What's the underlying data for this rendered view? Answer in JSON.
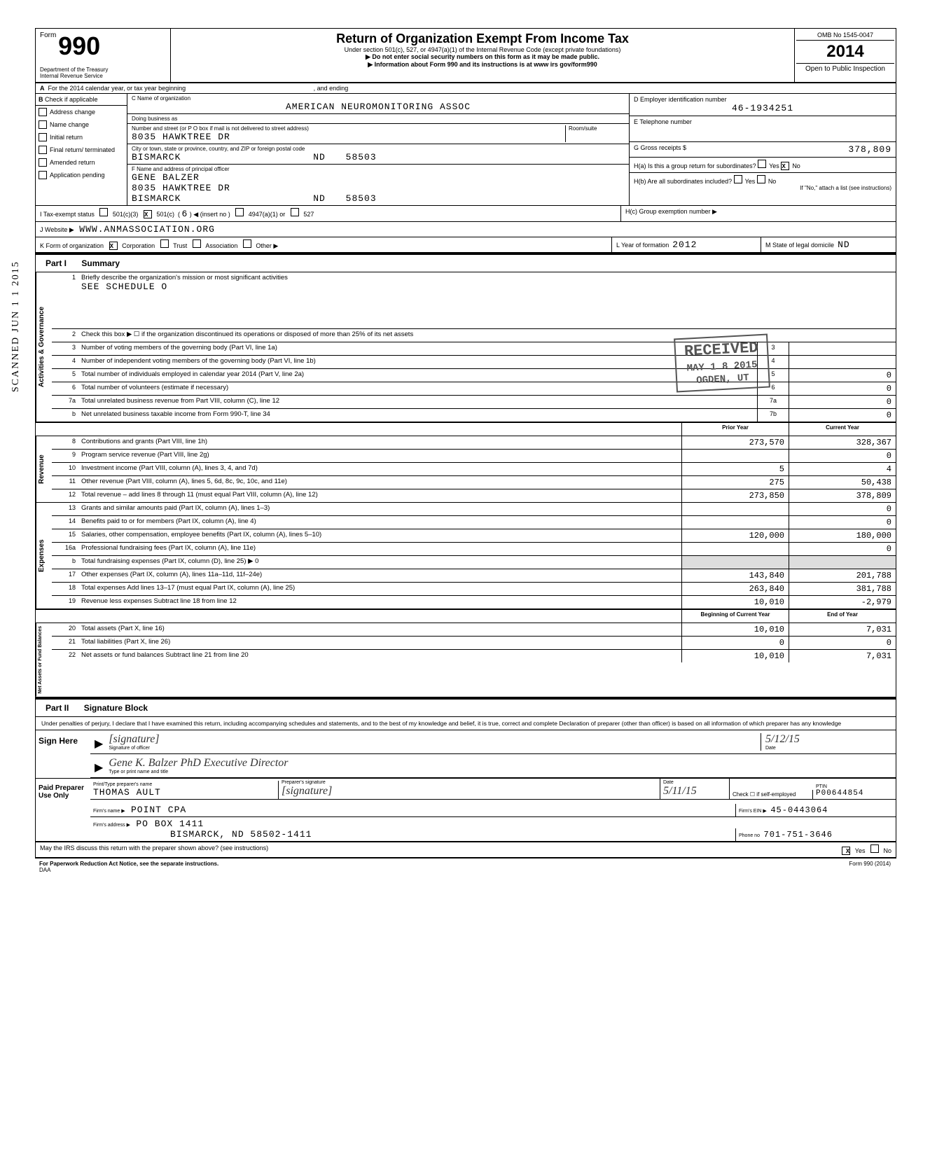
{
  "header": {
    "form_prefix": "Form",
    "form_number": "990",
    "dept": "Department of the Treasury",
    "irs": "Internal Revenue Service",
    "title": "Return of Organization Exempt From Income Tax",
    "subtitle1": "Under section 501(c), 527, or 4947(a)(1) of the Internal Revenue Code (except private foundations)",
    "subtitle2": "▶ Do not enter social security numbers on this form as it may be made public.",
    "subtitle3": "▶ Information about Form 990 and its instructions is at www irs gov/form990",
    "omb": "OMB No 1545-0047",
    "year": "2014",
    "open": "Open to Public Inspection"
  },
  "section_a": {
    "line_a": "For the 2014 calendar year, or tax year beginning",
    "and_ending": ", and ending",
    "b_label": "Check if applicable",
    "checkboxes": [
      "Address change",
      "Name change",
      "Initial return",
      "Final return/ terminated",
      "Amended return",
      "Application pending"
    ],
    "c_label": "C  Name of organization",
    "org_name": "AMERICAN NEUROMONITORING ASSOC",
    "dba_label": "Doing business as",
    "street_label": "Number and street (or P O  box if mail is not delivered to street address)",
    "street": "8035 HAWKTREE DR",
    "room_label": "Room/suite",
    "city_label": "City or town, state or province, country, and ZIP or foreign postal code",
    "city": "BISMARCK",
    "state": "ND",
    "zip": "58503",
    "f_label": "F  Name and address of principal officer",
    "officer_name": "GENE BALZER",
    "officer_street": "8035 HAWKTREE DR",
    "officer_city": "BISMARCK",
    "officer_state": "ND",
    "officer_zip": "58503",
    "d_label": "D  Employer identification number",
    "ein": "46-1934251",
    "e_label": "E  Telephone number",
    "g_label": "G  Gross receipts $",
    "gross_receipts": "378,809",
    "ha_label": "H(a) Is this a group return for subordinates?",
    "hb_label": "H(b) Are all subordinates included?",
    "hb_note": "If \"No,\" attach a list (see instructions)",
    "hc_label": "H(c) Group exemption number ▶",
    "yes": "Yes",
    "no": "No"
  },
  "status_row": {
    "i_label": "I     Tax-exempt status",
    "opt1": "501(c)(3)",
    "opt2": "501(c)",
    "opt2_num": "6",
    "opt2_insert": "◀ (insert no )",
    "opt3": "4947(a)(1) or",
    "opt4": "527",
    "j_label": "J     Website ▶",
    "website": "WWW.ANMASSOCIATION.ORG",
    "k_label": "K    Form of organization",
    "k_opts": [
      "Corporation",
      "Trust",
      "Association",
      "Other ▶"
    ],
    "l_label": "L   Year of formation",
    "l_val": "2012",
    "m_label": "M  State of legal domicile",
    "m_val": "ND"
  },
  "part1": {
    "header": "Summary",
    "governance": {
      "label": "Activities & Governance",
      "line1": "Briefly describe the organization's mission or most significant activities",
      "line1_val": "SEE SCHEDULE O",
      "line2": "Check this box ▶ ☐ if the organization discontinued its operations or disposed of more than 25% of its net assets",
      "line3": "Number of voting members of the governing body (Part VI, line 1a)",
      "line4": "Number of independent voting members of the governing body (Part VI, line 1b)",
      "line5": "Total number of individuals employed in calendar year 2014 (Part V, line 2a)",
      "line5_box": "5",
      "line5_val": "0",
      "line6": "Total number of volunteers (estimate if necessary)",
      "line6_box": "6",
      "line6_val": "0",
      "line7a": "Total unrelated business revenue from Part VIII, column (C), line 12",
      "line7a_box": "7a",
      "line7a_val": "0",
      "line7b": "Net unrelated business taxable income from Form 990-T, line 34",
      "line7b_box": "7b",
      "line7b_val": "0"
    },
    "col_headers": {
      "prior": "Prior Year",
      "current": "Current Year"
    },
    "revenue": {
      "label": "Revenue",
      "rows": [
        {
          "n": "8",
          "t": "Contributions and grants (Part VIII, line 1h)",
          "p": "273,570",
          "c": "328,367"
        },
        {
          "n": "9",
          "t": "Program service revenue (Part VIII, line 2g)",
          "p": "",
          "c": "0"
        },
        {
          "n": "10",
          "t": "Investment income (Part VIII, column (A), lines 3, 4, and 7d)",
          "p": "5",
          "c": "4"
        },
        {
          "n": "11",
          "t": "Other revenue (Part VIII, column (A), lines 5, 6d, 8c, 9c, 10c, and 11e)",
          "p": "275",
          "c": "50,438"
        },
        {
          "n": "12",
          "t": "Total revenue – add lines 8 through 11 (must equal Part VIII, column (A), line 12)",
          "p": "273,850",
          "c": "378,809"
        }
      ]
    },
    "expenses": {
      "label": "Expenses",
      "rows": [
        {
          "n": "13",
          "t": "Grants and similar amounts paid (Part IX, column (A), lines 1–3)",
          "p": "",
          "c": "0"
        },
        {
          "n": "14",
          "t": "Benefits paid to or for members (Part IX, column (A), line 4)",
          "p": "",
          "c": "0"
        },
        {
          "n": "15",
          "t": "Salaries, other compensation, employee benefits (Part IX, column (A), lines 5–10)",
          "p": "120,000",
          "c": "180,000"
        },
        {
          "n": "16a",
          "t": "Professional fundraising fees (Part IX, column (A), line 11e)",
          "p": "",
          "c": "0"
        },
        {
          "n": "b",
          "t": "Total fundraising expenses (Part IX, column (D), line 25) ▶                                              0",
          "p": "",
          "c": "",
          "shaded": true
        },
        {
          "n": "17",
          "t": "Other expenses (Part IX, column (A), lines 11a–11d, 11f–24e)",
          "p": "143,840",
          "c": "201,788"
        },
        {
          "n": "18",
          "t": "Total expenses Add lines 13–17 (must equal Part IX, column (A), line 25)",
          "p": "263,840",
          "c": "381,788"
        },
        {
          "n": "19",
          "t": "Revenue less expenses Subtract line 18 from line 12",
          "p": "10,010",
          "c": "-2,979"
        }
      ]
    },
    "netassets_headers": {
      "begin": "Beginning of Current Year",
      "end": "End of Year"
    },
    "netassets": {
      "label": "Net Assets or Fund Balances",
      "rows": [
        {
          "n": "20",
          "t": "Total assets (Part X, line 16)",
          "p": "10,010",
          "c": "7,031"
        },
        {
          "n": "21",
          "t": "Total liabilities (Part X, line 26)",
          "p": "0",
          "c": "0"
        },
        {
          "n": "22",
          "t": "Net assets or fund balances Subtract line 21 from line 20",
          "p": "10,010",
          "c": "7,031"
        }
      ]
    }
  },
  "part2": {
    "header": "Signature Block",
    "penalty": "Under penalties of perjury, I declare that I have examined this return, including accompanying schedules and statements, and to the best of my knowledge and belief, it is true, correct and complete Declaration of preparer (other than officer) is based on all information of which preparer has any knowledge",
    "sign_here": "Sign Here",
    "sig_label": "Signature of officer",
    "date_label": "Date",
    "date_val": "5/12/15",
    "type_label": "Type or print name and title",
    "typed_name": "Gene K. Balzer PhD  Executive Director",
    "paid_label": "Paid Preparer Use Only",
    "preparer_name_label": "Print/Type preparer's name",
    "preparer_name": "THOMAS AULT",
    "preparer_sig_label": "Preparer's signature",
    "preparer_date": "5/11/15",
    "check_label": "Check ☐ if self-employed",
    "ptin_label": "PTIN",
    "ptin": "P00644854",
    "firm_name_label": "Firm's name    ▶",
    "firm_name": "POINT CPA",
    "firm_addr_label": "Firm's address  ▶",
    "firm_addr1": "PO BOX 1411",
    "firm_addr2": "BISMARCK, ND   58502-1411",
    "firm_ein_label": "Firm's EIN ▶",
    "firm_ein": "45-0443064",
    "phone_label": "Phone no",
    "phone": "701-751-3646",
    "discuss": "May the IRS discuss this return with the preparer shown above? (see instructions)",
    "discuss_yes": "Yes",
    "discuss_no": "No",
    "paperwork": "For Paperwork Reduction Act Notice, see the separate instructions.",
    "daa": "DAA",
    "form_foot": "Form 990 (2014)"
  },
  "stamps": {
    "received": "RECEIVED",
    "received_date": "MAY 1 8 2015",
    "ogden": "OGDEN, UT",
    "scanned": "SCANNED JUN 1 1 2015"
  }
}
